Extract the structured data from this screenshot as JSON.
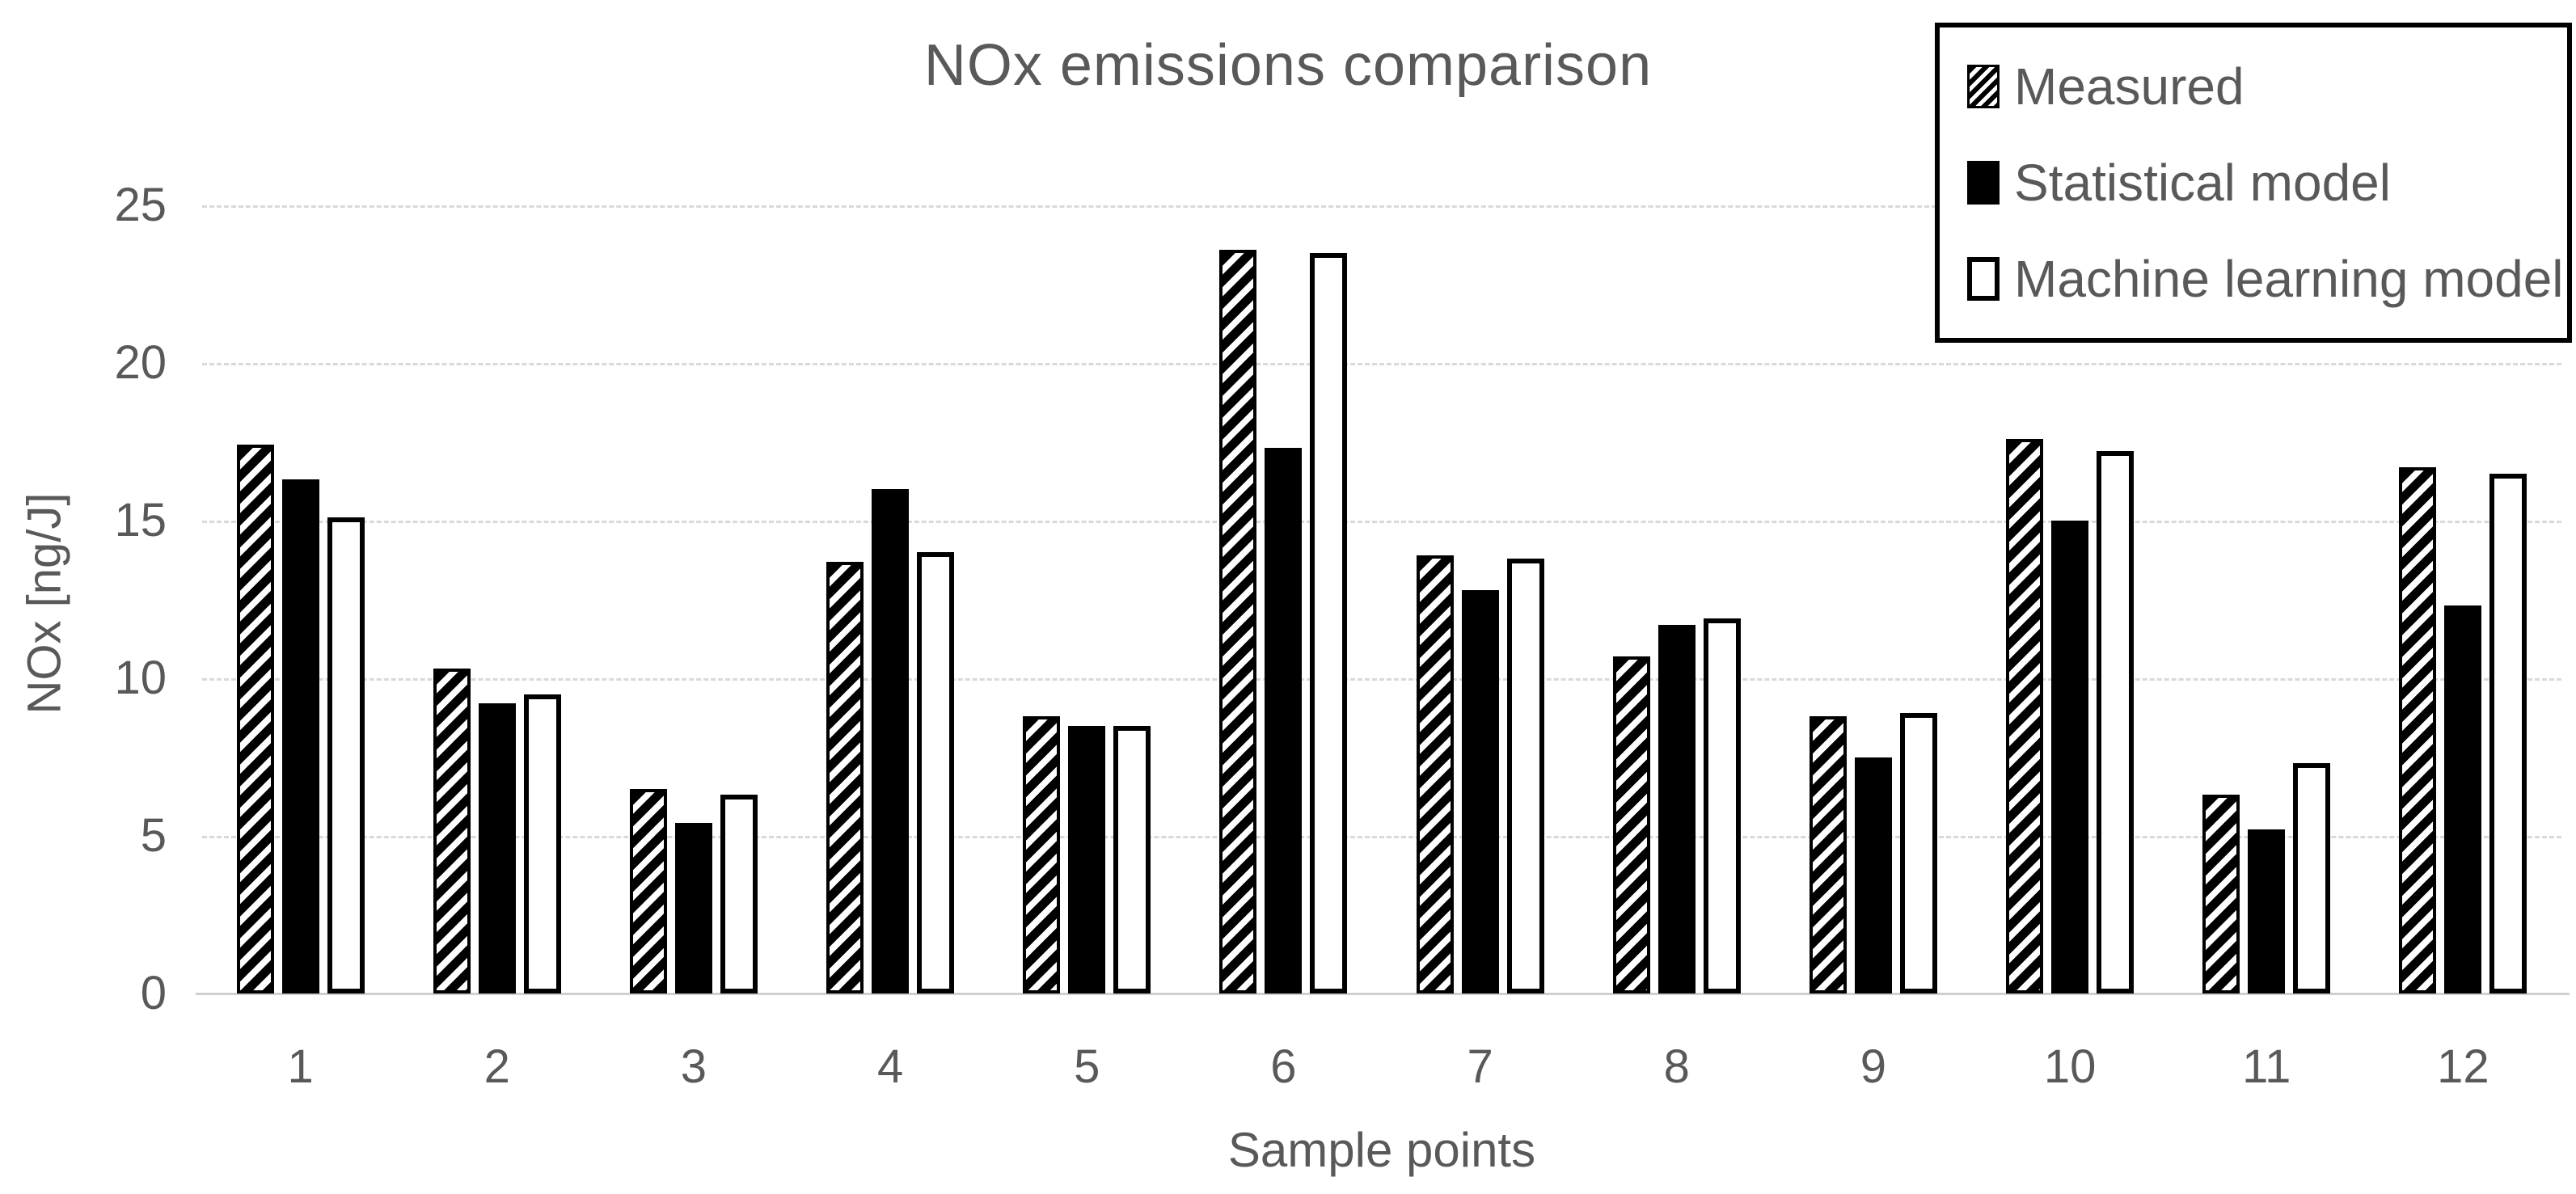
{
  "title": "NOx emissions comparison",
  "y_axis": {
    "title": "NOx [ng/J]",
    "ticks": [
      0,
      5,
      10,
      15,
      20,
      25
    ],
    "max": 25
  },
  "x_axis": {
    "title": "Sample points"
  },
  "legend": {
    "position": "top-right",
    "items": [
      {
        "label": "Measured",
        "style": "hatched"
      },
      {
        "label": "Statistical model",
        "style": "solid-black"
      },
      {
        "label": "Machine learning model",
        "style": "white-outline"
      }
    ]
  },
  "colors": {
    "text": "#595959",
    "gridline": "#d9d9d9",
    "axis_line": "#cfcfcf",
    "bar_fill_black": "#000000",
    "bar_fill_white": "#ffffff",
    "bar_border": "#000000"
  },
  "chart_data": {
    "type": "bar",
    "title": "NOx emissions comparison",
    "xlabel": "Sample points",
    "ylabel": "NOx [ng/J]",
    "ylim": [
      0,
      25
    ],
    "grid": "horizontal-dashed",
    "legend_position": "top-right",
    "categories": [
      "1",
      "2",
      "3",
      "4",
      "5",
      "6",
      "7",
      "8",
      "9",
      "10",
      "11",
      "12"
    ],
    "series": [
      {
        "name": "Measured",
        "style": "hatched",
        "values": [
          17.4,
          10.3,
          6.5,
          13.7,
          8.8,
          23.6,
          13.9,
          10.7,
          8.8,
          17.6,
          6.3,
          16.7
        ]
      },
      {
        "name": "Statistical model",
        "style": "solid-black",
        "values": [
          16.3,
          9.2,
          5.4,
          16.0,
          8.5,
          17.3,
          12.8,
          11.7,
          7.5,
          15.0,
          5.2,
          12.3
        ]
      },
      {
        "name": "Machine learning model",
        "style": "white-outline",
        "values": [
          15.1,
          9.5,
          6.3,
          14.0,
          8.5,
          23.5,
          13.8,
          11.9,
          8.9,
          17.2,
          7.3,
          16.5
        ]
      }
    ]
  }
}
